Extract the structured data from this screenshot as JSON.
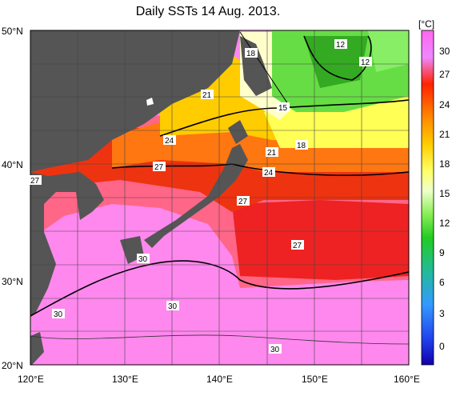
{
  "title": "Daily SSTs 14 Aug. 2013.",
  "map": {
    "lat_labels": [
      "50°N",
      "40°N",
      "30°N",
      "20°N"
    ],
    "lon_labels": [
      "120°E",
      "130°E",
      "140°E",
      "150°E",
      "160°E"
    ],
    "contour_labels": [
      "12",
      "12",
      "18",
      "15",
      "18",
      "21",
      "21",
      "24",
      "24",
      "27",
      "27",
      "27",
      "27",
      "30",
      "30",
      "30",
      "30"
    ],
    "colors": {
      "land": "#555555",
      "warm": "#ff88ee",
      "red": "#ee2222"
    }
  },
  "colorbar": {
    "unit": "[°C]",
    "ticks": [
      "30",
      "27",
      "24",
      "21",
      "18",
      "15",
      "12",
      "9",
      "6",
      "3",
      "0"
    ]
  }
}
